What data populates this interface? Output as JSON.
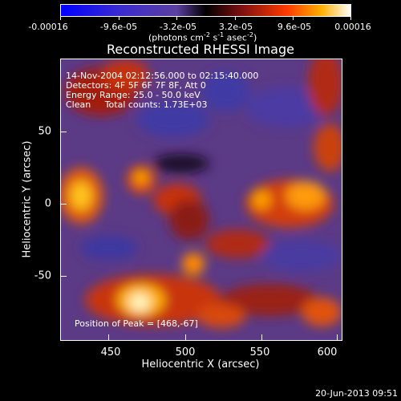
{
  "colorbar": {
    "tick_labels": [
      "-0.00016",
      "-9.6e-05",
      "-3.2e-05",
      "3.2e-05",
      "9.6e-05",
      "0.00016"
    ],
    "units_text": "(photons cm",
    "units_exp1": "-2",
    "units_mid": " s",
    "units_exp2": "-1",
    "units_mid2": " asec",
    "units_exp3": "-2",
    "units_end": ")"
  },
  "title": "Reconstructed RHESSI Image",
  "info": {
    "time_range": "14-Nov-2004 02:12:56.000 to 02:15:40.000",
    "detectors": "Detectors: 4F 5F 6F 7F 8F, Att 0",
    "energy": "Energy Range: 25.0 - 50.0 keV",
    "method": "Clean     Total counts: 1.73E+03"
  },
  "peak_text": "Position of Peak = [468,-67]",
  "axes": {
    "xlabel": "Heliocentric X (arcsec)",
    "ylabel": "Heliocentric Y (arcsec)",
    "xticks": [
      "450",
      "500",
      "550",
      "600"
    ],
    "yticks": [
      "50",
      "0",
      "-50"
    ]
  },
  "datestamp": "20-Jun-2013 09:51"
}
